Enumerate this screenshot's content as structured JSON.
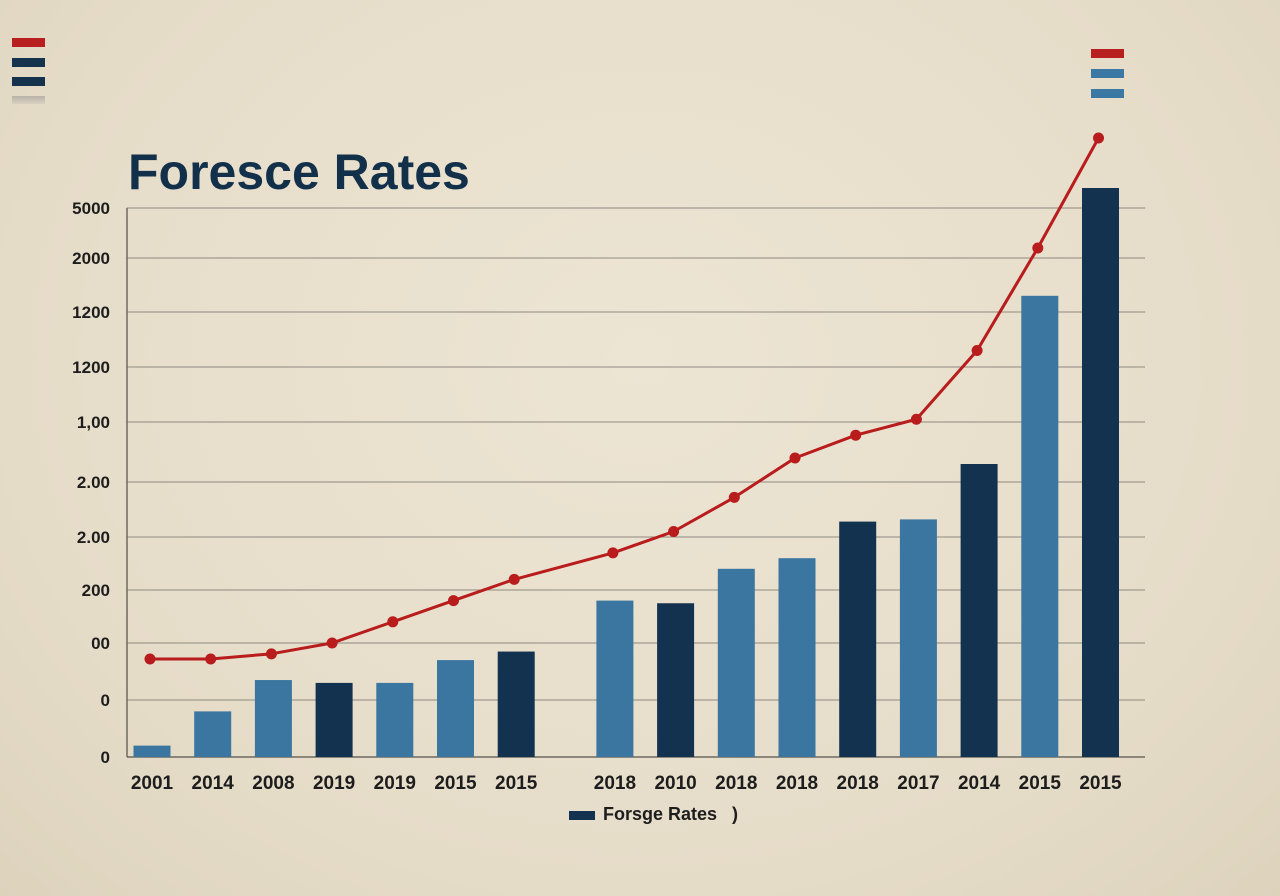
{
  "colors": {
    "background": "#e8dfcc",
    "bar_dark": "#13324f",
    "bar_light": "#3a76a0",
    "line": "#b81c1c",
    "grid": "#8f8a80",
    "title": "#13304a",
    "mark_red": "#b82020",
    "mark_dark": "#16334d",
    "mark_blue": "#3b78a3",
    "mark_grey": "#9a9890"
  },
  "chart_data": {
    "type": "bar",
    "title": "Foresce Rates",
    "xlabel": "",
    "ylabel": "",
    "ylim": [
      0,
      10
    ],
    "y_tick_labels": [
      "0",
      "0",
      "00",
      "200",
      "2.00",
      "2.00",
      "1,00",
      "1200",
      "1200",
      "2000",
      "5000"
    ],
    "y_tick_values": [
      0,
      1,
      2,
      3,
      4,
      5,
      6,
      7,
      8,
      9,
      10
    ],
    "categories": [
      "2001",
      "2014",
      "2008",
      "2019",
      "2019",
      "2015",
      "2015",
      "2018",
      "2010",
      "2018",
      "2018",
      "2018",
      "2017",
      "2014",
      "2015",
      "2015"
    ],
    "category_gap_after_index": 6,
    "series": [
      {
        "name": "Forsge Rates",
        "kind": "bar",
        "values": [
          0.2,
          0.8,
          1.35,
          1.3,
          1.3,
          1.7,
          1.85,
          2.8,
          2.75,
          3.4,
          3.6,
          4.28,
          4.32,
          5.3,
          8.3,
          10.4
        ],
        "shade": [
          "light",
          "light",
          "light",
          "dark",
          "light",
          "light",
          "dark",
          "light",
          "dark",
          "light",
          "light",
          "dark",
          "light",
          "dark",
          "light",
          "dark"
        ]
      },
      {
        "kind": "line",
        "values": [
          1.72,
          1.72,
          1.81,
          2.0,
          2.4,
          2.8,
          3.2,
          3.7,
          4.1,
          4.72,
          5.4,
          5.78,
          6.05,
          7.3,
          9.2,
          11.4
        ]
      }
    ],
    "legend": {
      "position": "bottom-center",
      "label": "Forsge Rates",
      "trailing": ")"
    },
    "grid": true
  }
}
